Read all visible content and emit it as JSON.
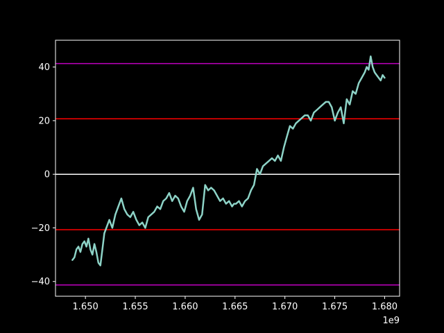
{
  "chart_data": {
    "type": "line",
    "title": "",
    "xlabel": "",
    "ylabel": "",
    "x_offset_label": "1e9",
    "xlim": [
      1.647,
      1.6815
    ],
    "ylim": [
      -45.5,
      50
    ],
    "xticks": [
      1.65,
      1.655,
      1.66,
      1.665,
      1.67,
      1.675,
      1.68
    ],
    "xtick_labels": [
      "1.650",
      "1.655",
      "1.660",
      "1.665",
      "1.670",
      "1.675",
      "1.680"
    ],
    "yticks": [
      -40,
      -20,
      0,
      20,
      40
    ],
    "ytick_labels": [
      "−40",
      "−20",
      "0",
      "20",
      "40"
    ],
    "grid": false,
    "background": "#000000",
    "series_color": "#8dd3c7",
    "horizontal_lines": [
      {
        "y": 41.3,
        "color": "#c000c0"
      },
      {
        "y": 20.7,
        "color": "#ff0000"
      },
      {
        "y": 0,
        "color": "#ffffff"
      },
      {
        "y": -20.7,
        "color": "#ff0000"
      },
      {
        "y": -41.3,
        "color": "#c000c0"
      }
    ],
    "series": [
      {
        "x": [
          1.6487,
          1.6489,
          1.6491,
          1.6493,
          1.6495,
          1.6497,
          1.6499,
          1.6501,
          1.6503,
          1.6505,
          1.6507,
          1.6509,
          1.6511,
          1.6513,
          1.6515,
          1.6517,
          1.6519,
          1.6521,
          1.6524,
          1.6527,
          1.653,
          1.6533,
          1.6536,
          1.6539,
          1.6542,
          1.6545,
          1.6548,
          1.6551,
          1.6554,
          1.6557,
          1.656,
          1.6563,
          1.6566,
          1.6569,
          1.6572,
          1.6575,
          1.6578,
          1.6581,
          1.6584,
          1.6587,
          1.659,
          1.6593,
          1.6596,
          1.6599,
          1.6602,
          1.6605,
          1.6608,
          1.6611,
          1.6614,
          1.6617,
          1.662,
          1.6623,
          1.6626,
          1.6629,
          1.6632,
          1.6635,
          1.6638,
          1.6641,
          1.6644,
          1.6647,
          1.6649,
          1.6651,
          1.6654,
          1.6657,
          1.666,
          1.6663,
          1.6666,
          1.6669,
          1.6672,
          1.6675,
          1.6678,
          1.6681,
          1.6684,
          1.6687,
          1.669,
          1.6693,
          1.6696,
          1.6699,
          1.6702,
          1.6705,
          1.6708,
          1.6711,
          1.6714,
          1.6717,
          1.672,
          1.6723,
          1.6726,
          1.6729,
          1.6732,
          1.6735,
          1.6738,
          1.6741,
          1.6744,
          1.6747,
          1.675,
          1.6753,
          1.6756,
          1.6759,
          1.6762,
          1.6765,
          1.6768,
          1.6771,
          1.6774,
          1.6777,
          1.678,
          1.6782,
          1.6784,
          1.6786,
          1.6788,
          1.679,
          1.6792,
          1.6794,
          1.6796,
          1.6798,
          1.68
        ],
        "y": [
          -32,
          -31,
          -28,
          -27,
          -29,
          -26,
          -25,
          -27,
          -24,
          -28,
          -30,
          -26,
          -29,
          -33,
          -34,
          -28,
          -22,
          -20,
          -17,
          -20,
          -15,
          -12,
          -9,
          -13,
          -15,
          -16,
          -14,
          -17,
          -19,
          -18,
          -20,
          -16,
          -15,
          -14,
          -12,
          -13,
          -10,
          -9,
          -7,
          -10,
          -8,
          -9,
          -12,
          -14,
          -10,
          -8,
          -5,
          -13,
          -17,
          -15,
          -4,
          -6,
          -5,
          -6,
          -8,
          -10,
          -9,
          -11,
          -10,
          -12,
          -11,
          -11,
          -10,
          -12,
          -10,
          -9,
          -6,
          -4,
          2,
          0,
          3,
          4,
          5,
          6,
          5,
          7,
          5,
          10,
          14,
          18,
          17,
          19,
          20,
          21,
          22,
          22,
          20,
          23,
          24,
          25,
          26,
          27,
          27,
          25,
          20,
          23,
          25,
          19,
          28,
          26,
          31,
          30,
          34,
          36,
          38,
          40,
          39,
          44,
          40,
          38,
          37,
          36,
          35,
          37,
          36
        ]
      }
    ]
  }
}
